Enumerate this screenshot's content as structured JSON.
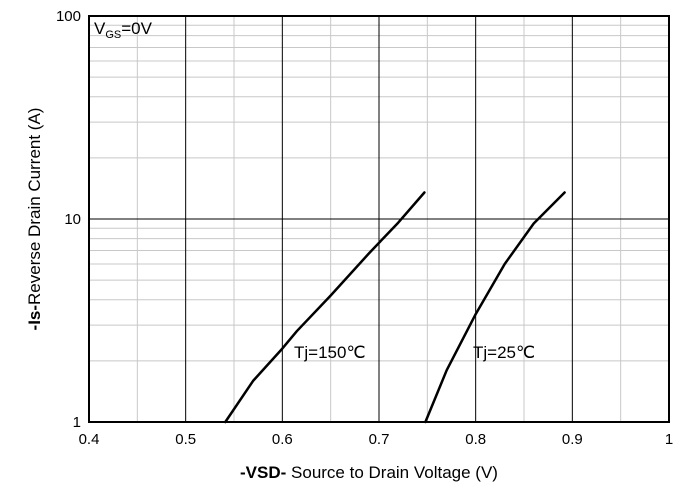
{
  "chart_data": {
    "type": "line",
    "title": "",
    "xlabel_bold": "-VSD-",
    "xlabel_rest": " Source to Drain Voltage (V)",
    "ylabel_bold": "-Is-",
    "ylabel_rest": "Reverse  Drain Current  (A)",
    "x_scale": "linear",
    "y_scale": "log",
    "xlim": [
      0.4,
      1.0
    ],
    "ylim": [
      1,
      100
    ],
    "x_ticks": [
      "0.4",
      "0.5",
      "0.6",
      "0.7",
      "0.8",
      "0.9",
      "1"
    ],
    "x_tick_values": [
      0.4,
      0.5,
      0.6,
      0.7,
      0.8,
      0.9,
      1.0
    ],
    "y_ticks": [
      "1",
      "10",
      "100"
    ],
    "y_tick_values": [
      1,
      10,
      100
    ],
    "grid": "on (major and minor)",
    "condition_label": {
      "main": "V",
      "sub": "GS",
      "rest": "=0V"
    },
    "series": [
      {
        "name": "Tj=150℃",
        "x": [
          0.541,
          0.57,
          0.6,
          0.615,
          0.65,
          0.69,
          0.72,
          0.747
        ],
        "y": [
          1.0,
          1.6,
          2.3,
          2.8,
          4.2,
          6.8,
          9.6,
          13.5
        ]
      },
      {
        "name": "Tj=25℃",
        "x": [
          0.748,
          0.77,
          0.8,
          0.83,
          0.86,
          0.892
        ],
        "y": [
          1.0,
          1.8,
          3.4,
          6.0,
          9.5,
          13.5
        ]
      }
    ]
  }
}
